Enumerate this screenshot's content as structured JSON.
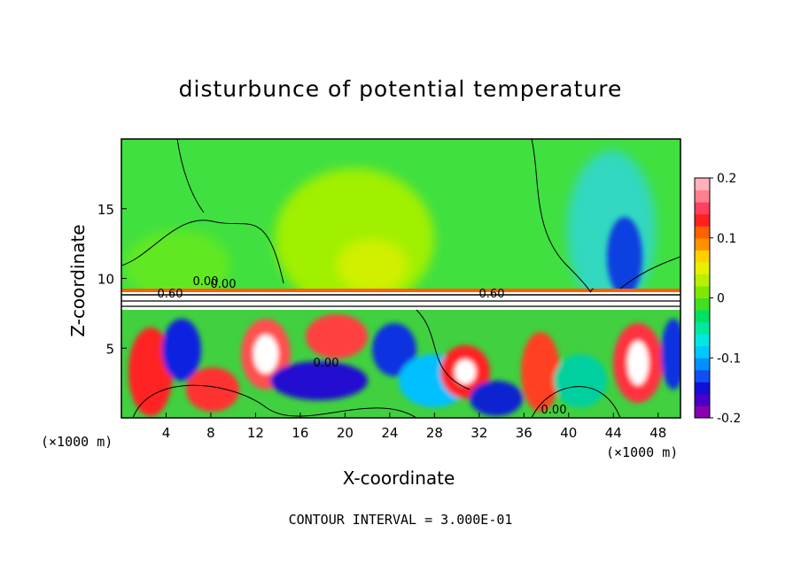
{
  "chart_data": {
    "type": "heatmap",
    "title": "disturbunce of potential temperature",
    "xlabel": "X-coordinate",
    "ylabel": "Z-coordinate",
    "x_unit": "(×1000 m)",
    "x_ticks": [
      "4",
      "8",
      "12",
      "16",
      "20",
      "24",
      "28",
      "32",
      "36",
      "40",
      "44",
      "48"
    ],
    "y_ticks": [
      "5",
      "10",
      "15"
    ],
    "xlim": [
      0,
      50
    ],
    "ylim": [
      0,
      20
    ],
    "colorbar": {
      "min": -0.2,
      "max": 0.2,
      "tick_labels": [
        "0.2",
        "0.1",
        "0",
        "-0.1",
        "-0.2"
      ],
      "colors": [
        "#8a00b0",
        "#4a00c8",
        "#1010d8",
        "#1050f0",
        "#0090ff",
        "#00c8ff",
        "#00e8e0",
        "#00e8a0",
        "#00e060",
        "#40e020",
        "#80e800",
        "#b8f000",
        "#e8f000",
        "#ffd000",
        "#ff9000",
        "#ff6000",
        "#ff2020",
        "#ff4060",
        "#ff8090",
        "#ffb0b8"
      ]
    },
    "contour_labels": [
      "0.60",
      "0.60",
      "0.00",
      "0.00",
      "0.00",
      "0.00"
    ],
    "footer": "CONTOUR INTERVAL = 3.000E-01"
  }
}
